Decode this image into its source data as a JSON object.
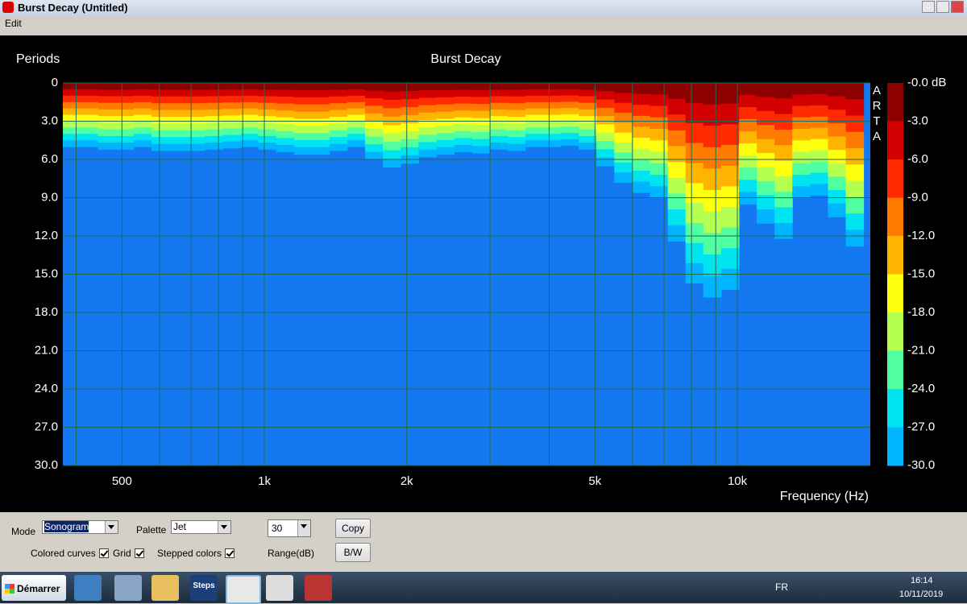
{
  "window": {
    "title": "Burst Decay  (Untitled)",
    "menu": [
      "Edit"
    ]
  },
  "chart_data": {
    "type": "heatmap",
    "title": "Burst Decay",
    "watermark": "ARTA",
    "ylabel": "Periods",
    "xlabel": "Frequency (Hz)",
    "xlog": true,
    "xlim": [
      375,
      19100
    ],
    "ylim": [
      0,
      30
    ],
    "yticks": [
      {
        "value": 0,
        "label": "0"
      },
      {
        "value": 3,
        "label": "3.0"
      },
      {
        "value": 6,
        "label": "6.0"
      },
      {
        "value": 9,
        "label": "9.0"
      },
      {
        "value": 12,
        "label": "12.0"
      },
      {
        "value": 15,
        "label": "15.0"
      },
      {
        "value": 18,
        "label": "18.0"
      },
      {
        "value": 21,
        "label": "21.0"
      },
      {
        "value": 24,
        "label": "24.0"
      },
      {
        "value": 27,
        "label": "27.0"
      },
      {
        "value": 30,
        "label": "30.0"
      }
    ],
    "xticks": [
      500,
      {
        "value": 1000,
        "label": "1k"
      },
      {
        "value": 2000,
        "label": "2k"
      },
      {
        "value": 5000,
        "label": "5k"
      },
      {
        "value": 10000,
        "label": "10k"
      }
    ],
    "xgrid": [
      400,
      500,
      600,
      700,
      800,
      900,
      1000,
      2000,
      3000,
      4000,
      5000,
      6000,
      7000,
      8000,
      9000,
      10000
    ],
    "grid": true,
    "frequencies": [
      391,
      426,
      465,
      507,
      553,
      603,
      658,
      717,
      782,
      853,
      930,
      1014,
      1106,
      1206,
      1315,
      1434,
      1564,
      1705,
      1860,
      2028,
      2212,
      2412,
      2630,
      2868,
      3128,
      3411,
      3720,
      4056,
      4424,
      4824,
      5261,
      5737,
      6256,
      6823,
      7440,
      8114,
      8848,
      9649,
      10523,
      11475,
      12514,
      13647,
      14882,
      16229,
      17698
    ],
    "decay": [
      5.0,
      5.0,
      5.2,
      5.2,
      5.0,
      5.3,
      5.3,
      5.3,
      5.2,
      5.1,
      5.0,
      5.2,
      5.4,
      5.6,
      5.6,
      5.3,
      5.0,
      6.0,
      6.6,
      6.3,
      5.8,
      5.6,
      5.4,
      5.5,
      5.2,
      5.3,
      5.0,
      5.0,
      4.9,
      5.2,
      6.5,
      7.8,
      8.6,
      9.0,
      12.4,
      15.7,
      16.8,
      16.2,
      9.5,
      11.0,
      12.2,
      9.0,
      8.8,
      10.5,
      12.8
    ],
    "colorbar": {
      "clim": [
        -30,
        0
      ],
      "ticks": [
        {
          "value": 0,
          "label": "-0.0 dB"
        },
        {
          "value": -3,
          "label": "-3.0"
        },
        {
          "value": -6,
          "label": "-6.0"
        },
        {
          "value": -9,
          "label": "-9.0"
        },
        {
          "value": -12,
          "label": "-12.0"
        },
        {
          "value": -15,
          "label": "-15.0"
        },
        {
          "value": -18,
          "label": "-18.0"
        },
        {
          "value": -21,
          "label": "-21.0"
        },
        {
          "value": -24,
          "label": "-24.0"
        },
        {
          "value": -27,
          "label": "-27.0"
        },
        {
          "value": -30,
          "label": "-30.0"
        }
      ],
      "colors": [
        "#8c0000",
        "#d20000",
        "#ff2a00",
        "#ff7a00",
        "#ffb400",
        "#ffff10",
        "#b4ff50",
        "#50ffa0",
        "#00e4f0",
        "#00b4ff"
      ],
      "floor_color": "#1478f0"
    }
  },
  "controls": {
    "mode_label": "Mode",
    "mode": "Sonogram",
    "palette_label": "Palette",
    "palette": "Jet",
    "range": "30",
    "range_label": "Range(dB)",
    "copy": "Copy",
    "bw": "B/W",
    "checkboxes": [
      {
        "label": "Colored curves",
        "checked": true
      },
      {
        "label": "Grid",
        "checked": true
      },
      {
        "label": "Stepped colors",
        "checked": true
      }
    ]
  },
  "taskbar": {
    "start": "Démarrer",
    "steps": "Steps",
    "lang": "FR",
    "time": "16:14",
    "date": "10/11/2019"
  }
}
